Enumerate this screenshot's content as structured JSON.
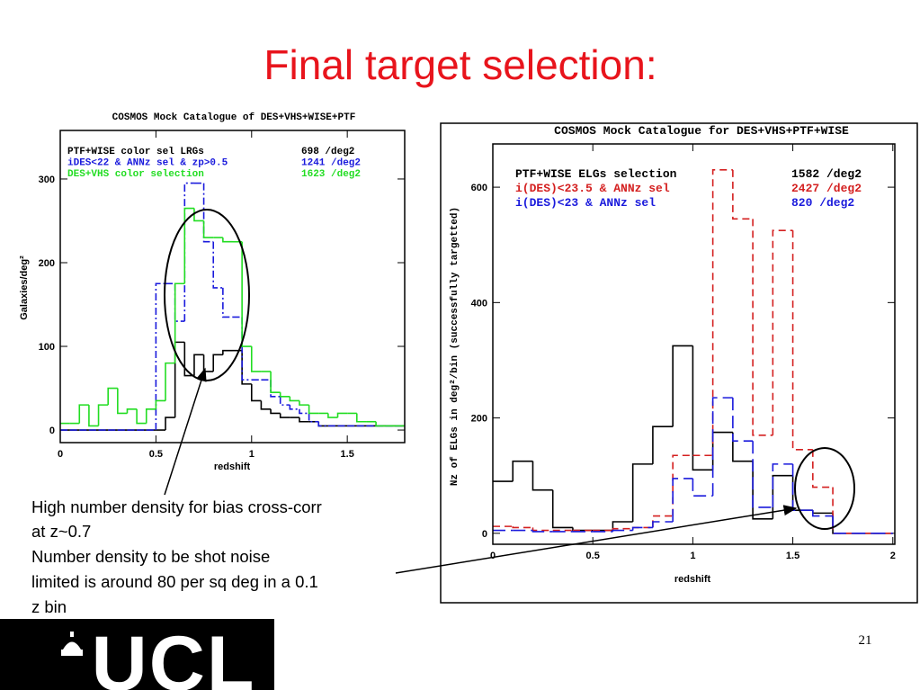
{
  "title": "Final target selection:",
  "annotation": [
    "High number density for bias cross-corr",
    "at z~0.7",
    "Number density to be shot noise",
    "limited is around 80 per sq deg in a 0.1",
    "z bin"
  ],
  "page_number": "21",
  "logo": "UCL",
  "chart_data": [
    {
      "type": "histogram",
      "title": "COSMOS Mock Catalogue of DES+VHS+WISE+PTF",
      "xlabel": "redshift",
      "ylabel": "Galaxies/deg²",
      "bins": [
        0,
        0.05,
        0.1,
        0.15,
        0.2,
        0.25,
        0.3,
        0.35,
        0.4,
        0.45,
        0.5,
        0.55,
        0.6,
        0.65,
        0.7,
        0.75,
        0.8,
        0.85,
        0.9,
        0.95,
        1,
        1.05,
        1.1,
        1.15,
        1.2,
        1.25,
        1.3,
        1.35,
        1.4,
        1.45,
        1.5,
        1.55,
        1.6,
        1.65,
        1.7,
        1.75,
        1.8
      ],
      "series": [
        {
          "name": "PTF+WISE color sel LRGs",
          "density": "698 /deg2",
          "color": "#000000",
          "line_style": "solid",
          "values": [
            0,
            0,
            0,
            0,
            0,
            0,
            0,
            0,
            0,
            0,
            0,
            15,
            105,
            65,
            90,
            70,
            90,
            95,
            95,
            55,
            35,
            25,
            20,
            15,
            15,
            10,
            10,
            5,
            5,
            5,
            5,
            5,
            5,
            5,
            5,
            5
          ]
        },
        {
          "name": "iDES<22 & ANNz sel & zp>0.5",
          "density": "1241 /deg2",
          "color": "#1a1adc",
          "line_style": "dashdot",
          "values": [
            0,
            0,
            0,
            0,
            0,
            0,
            0,
            0,
            0,
            0,
            175,
            175,
            130,
            295,
            295,
            225,
            170,
            135,
            135,
            60,
            60,
            60,
            40,
            30,
            25,
            20,
            10,
            5,
            5,
            5,
            5,
            5,
            5,
            5,
            5,
            5
          ]
        },
        {
          "name": "DES+VHS color selection",
          "density": "1623 /deg2",
          "color": "#22dd22",
          "line_style": "solid",
          "values": [
            8,
            8,
            30,
            5,
            30,
            50,
            20,
            25,
            8,
            25,
            35,
            80,
            175,
            265,
            250,
            230,
            230,
            225,
            225,
            100,
            70,
            70,
            45,
            40,
            35,
            30,
            20,
            20,
            15,
            20,
            20,
            10,
            10,
            5,
            5,
            5
          ]
        }
      ],
      "xlim": [
        0,
        1.8
      ],
      "ylim": [
        -15,
        358
      ],
      "xticks": [
        0,
        0.5,
        1,
        1.5
      ],
      "yticks": [
        0,
        100,
        200,
        300
      ]
    },
    {
      "type": "histogram",
      "title": "COSMOS Mock Catalogue for DES+VHS+PTF+WISE",
      "xlabel": "redshift",
      "ylabel": "Nz of ELGs in deg²/bin (successfully targetted)",
      "bins": [
        0,
        0.1,
        0.2,
        0.3,
        0.4,
        0.5,
        0.6,
        0.7,
        0.8,
        0.9,
        1,
        1.1,
        1.2,
        1.3,
        1.4,
        1.5,
        1.6,
        1.7,
        1.8,
        1.9,
        2
      ],
      "series": [
        {
          "name": "PTF+WISE ELGs selection",
          "density": "1582 /deg2",
          "color": "#000000",
          "line_style": "solid",
          "values": [
            90,
            125,
            75,
            10,
            5,
            5,
            20,
            120,
            185,
            325,
            110,
            175,
            125,
            25,
            100,
            40,
            35,
            0,
            0,
            0
          ]
        },
        {
          "name": "i(DES)<23.5 & ANNz sel",
          "density": "2427 /deg2",
          "color": "#d42020",
          "line_style": "dashed",
          "values": [
            12,
            10,
            5,
            5,
            5,
            5,
            8,
            10,
            30,
            135,
            135,
            630,
            545,
            170,
            525,
            145,
            80,
            0,
            0,
            0
          ]
        },
        {
          "name": "i(DES)<23 & ANNz sel",
          "density": "820 /deg2",
          "color": "#1a1adc",
          "line_style": "longdash",
          "values": [
            5,
            5,
            3,
            3,
            3,
            3,
            5,
            10,
            20,
            95,
            65,
            235,
            160,
            45,
            120,
            40,
            30,
            0,
            0,
            0
          ]
        }
      ],
      "xlim": [
        0,
        2.01
      ],
      "ylim": [
        -19,
        675
      ],
      "xticks": [
        0,
        0.5,
        1,
        1.5,
        2
      ],
      "yticks": [
        0,
        200,
        400,
        600
      ]
    }
  ]
}
